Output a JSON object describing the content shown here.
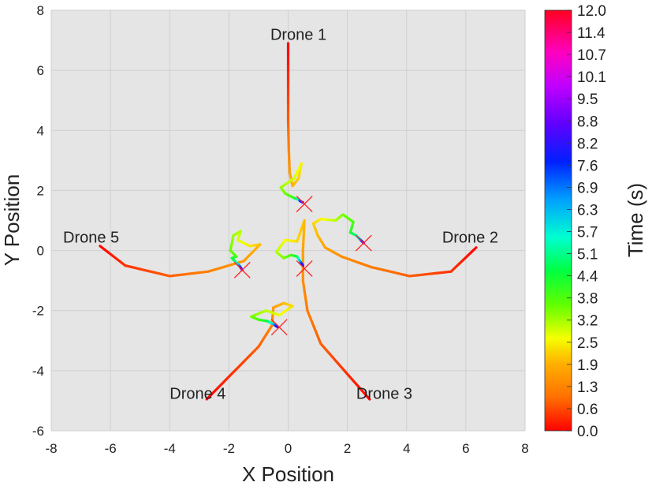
{
  "chart_data": {
    "type": "line",
    "xlabel": "X Position",
    "ylabel": "Y Position",
    "xlim": [
      -8,
      8
    ],
    "ylim": [
      -6,
      8
    ],
    "xticks": [
      "-8",
      "-6",
      "-4",
      "-2",
      "0",
      "2",
      "4",
      "6",
      "8"
    ],
    "yticks": [
      "-6",
      "-4",
      "-2",
      "0",
      "2",
      "4",
      "6",
      "8"
    ],
    "grid": true,
    "colorbar": {
      "label": "Time (s)",
      "min": 0.0,
      "max": 12.0,
      "ticks": [
        "0.0",
        "0.6",
        "1.3",
        "1.9",
        "2.5",
        "3.2",
        "3.8",
        "4.4",
        "5.1",
        "5.7",
        "6.3",
        "6.9",
        "7.6",
        "8.2",
        "8.8",
        "9.5",
        "10.1",
        "10.7",
        "11.4",
        "12.0"
      ]
    },
    "series": [
      {
        "name": "Drone 1",
        "label_pos": [
          -0.6,
          7.2
        ],
        "target": [
          0.55,
          1.55
        ],
        "points": [
          [
            0.0,
            6.9,
            0.0
          ],
          [
            0.0,
            5.5,
            0.4
          ],
          [
            0.0,
            4.3,
            0.8
          ],
          [
            0.02,
            3.4,
            1.2
          ],
          [
            0.05,
            2.6,
            1.6
          ],
          [
            0.15,
            2.15,
            1.9
          ],
          [
            0.35,
            2.4,
            2.2
          ],
          [
            0.45,
            2.9,
            2.5
          ],
          [
            0.2,
            2.4,
            2.8
          ],
          [
            -0.25,
            2.1,
            3.2
          ],
          [
            -0.1,
            1.9,
            3.5
          ],
          [
            0.2,
            1.75,
            4.0
          ],
          [
            0.35,
            1.7,
            5.5
          ],
          [
            0.4,
            1.65,
            7.0
          ],
          [
            0.5,
            1.6,
            9.0
          ]
        ]
      },
      {
        "name": "Drone 2",
        "label_pos": [
          5.2,
          0.45
        ],
        "target": [
          2.55,
          0.25
        ],
        "points": [
          [
            6.35,
            0.1,
            0.0
          ],
          [
            5.5,
            -0.7,
            0.4
          ],
          [
            4.1,
            -0.85,
            0.8
          ],
          [
            2.8,
            -0.55,
            1.1
          ],
          [
            1.8,
            -0.2,
            1.4
          ],
          [
            1.25,
            0.1,
            1.7
          ],
          [
            1.0,
            0.5,
            2.0
          ],
          [
            0.85,
            0.9,
            2.2
          ],
          [
            1.1,
            1.05,
            2.5
          ],
          [
            1.6,
            1.0,
            3.0
          ],
          [
            1.85,
            1.2,
            3.4
          ],
          [
            2.2,
            0.95,
            3.8
          ],
          [
            2.1,
            0.6,
            4.2
          ],
          [
            2.3,
            0.5,
            5.0
          ],
          [
            2.45,
            0.35,
            6.5
          ],
          [
            2.55,
            0.25,
            9.0
          ]
        ]
      },
      {
        "name": "Drone 3",
        "label_pos": [
          2.3,
          -4.75
        ],
        "target": [
          0.55,
          -0.6
        ],
        "points": [
          [
            2.75,
            -4.95,
            0.0
          ],
          [
            1.9,
            -4.0,
            0.4
          ],
          [
            1.1,
            -3.1,
            0.8
          ],
          [
            0.65,
            -2.0,
            1.1
          ],
          [
            0.5,
            -1.0,
            1.4
          ],
          [
            0.5,
            0.0,
            1.7
          ],
          [
            0.55,
            1.0,
            2.0
          ],
          [
            0.3,
            0.3,
            2.3
          ],
          [
            -0.1,
            0.35,
            2.6
          ],
          [
            -0.4,
            -0.05,
            3.0
          ],
          [
            -0.15,
            -0.25,
            3.4
          ],
          [
            0.1,
            -0.15,
            3.8
          ],
          [
            0.3,
            -0.2,
            4.5
          ],
          [
            0.4,
            -0.35,
            6.0
          ],
          [
            0.5,
            -0.5,
            8.5
          ]
        ]
      },
      {
        "name": "Drone 4",
        "label_pos": [
          -4.0,
          -4.75
        ],
        "target": [
          -0.3,
          -2.55
        ],
        "points": [
          [
            -2.75,
            -4.95,
            0.0
          ],
          [
            -1.9,
            -4.1,
            0.4
          ],
          [
            -1.0,
            -3.2,
            0.8
          ],
          [
            -0.55,
            -2.5,
            1.2
          ],
          [
            -0.5,
            -1.9,
            1.6
          ],
          [
            -0.15,
            -1.75,
            2.0
          ],
          [
            0.15,
            -1.85,
            2.3
          ],
          [
            -0.3,
            -2.15,
            2.7
          ],
          [
            -0.75,
            -2.0,
            3.0
          ],
          [
            -1.25,
            -2.2,
            3.4
          ],
          [
            -1.0,
            -2.3,
            3.8
          ],
          [
            -0.7,
            -2.35,
            4.5
          ],
          [
            -0.5,
            -2.45,
            6.0
          ],
          [
            -0.35,
            -2.55,
            8.5
          ]
        ]
      },
      {
        "name": "Drone 5",
        "label_pos": [
          -7.6,
          0.45
        ],
        "target": [
          -1.55,
          -0.65
        ],
        "points": [
          [
            -6.35,
            0.15,
            0.0
          ],
          [
            -5.5,
            -0.5,
            0.4
          ],
          [
            -4.0,
            -0.85,
            0.8
          ],
          [
            -2.7,
            -0.7,
            1.2
          ],
          [
            -1.5,
            -0.35,
            1.6
          ],
          [
            -0.95,
            0.2,
            2.0
          ],
          [
            -1.3,
            0.15,
            2.4
          ],
          [
            -1.7,
            0.35,
            2.8
          ],
          [
            -1.6,
            0.65,
            3.0
          ],
          [
            -1.85,
            0.5,
            3.2
          ],
          [
            -1.95,
            0.0,
            3.5
          ],
          [
            -1.75,
            -0.2,
            3.8
          ],
          [
            -1.9,
            -0.25,
            4.3
          ],
          [
            -1.75,
            -0.4,
            5.0
          ],
          [
            -1.65,
            -0.5,
            6.5
          ],
          [
            -1.55,
            -0.65,
            9.0
          ]
        ]
      }
    ]
  },
  "colors": {
    "plot_background": "#e5e5e5",
    "grid": "#cfcfcf",
    "target_marker": "#ff1f1f"
  }
}
